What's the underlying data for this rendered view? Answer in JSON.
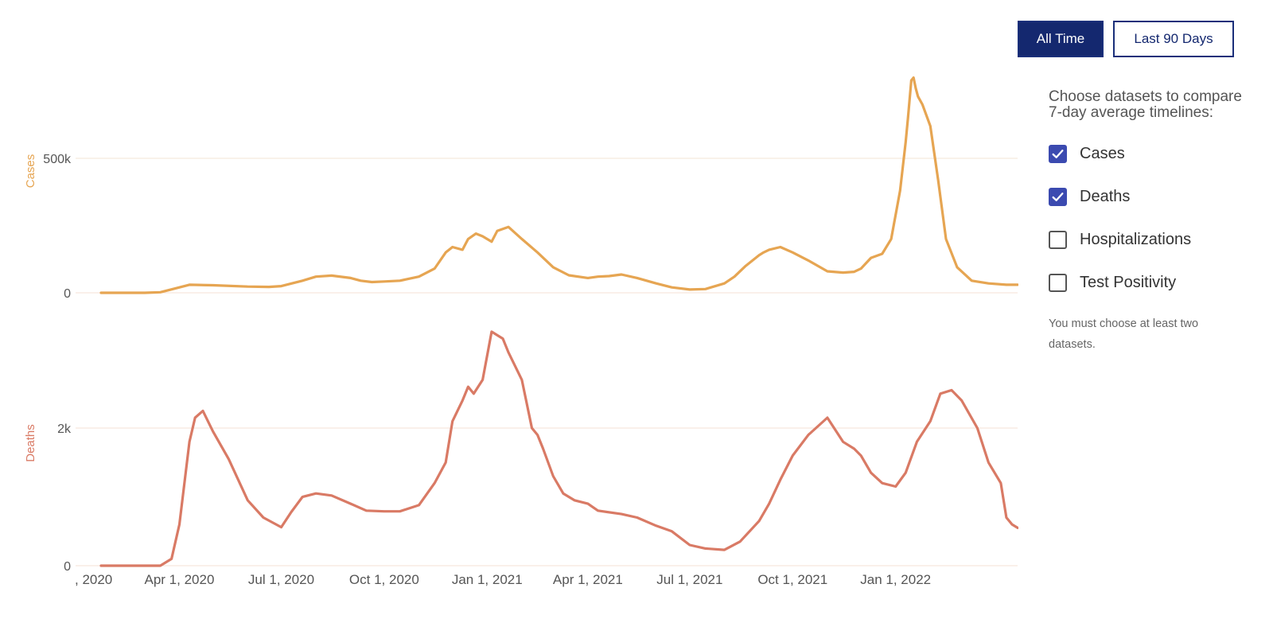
{
  "controls": {
    "all_time_label": "All Time",
    "last_90_label": "Last 90 Days",
    "selected": "all_time"
  },
  "panel": {
    "title": "Choose datasets to compare 7-day average timelines:",
    "options": [
      {
        "label": "Cases",
        "checked": true
      },
      {
        "label": "Deaths",
        "checked": true
      },
      {
        "label": "Hospitalizations",
        "checked": false
      },
      {
        "label": "Test Positivity",
        "checked": false
      }
    ],
    "note": "You must choose at least two datasets."
  },
  "colors": {
    "cases": "#e6a552",
    "deaths": "#d97a65",
    "accent": "#14286f",
    "checkbox": "#3b4ab0"
  },
  "chart_data": {
    "type": "line",
    "x_tick_labels": [
      ", 2020",
      "Apr 1, 2020",
      "Jul 1, 2020",
      "Oct 1, 2020",
      "Jan 1, 2021",
      "Apr 1, 2021",
      "Jul 1, 2021",
      "Oct 1, 2021",
      "Jan 1, 2022"
    ],
    "panels": [
      {
        "ylabel": "Cases",
        "ylim": [
          0,
          800000
        ],
        "y_ticks": [
          {
            "value": 0,
            "label": "0"
          },
          {
            "value": 500000,
            "label": "500k"
          }
        ],
        "series": [
          {
            "x": [
              "2020-01-22",
              "2020-03-01",
              "2020-03-15",
              "2020-04-01",
              "2020-04-10",
              "2020-05-01",
              "2020-06-01",
              "2020-06-20",
              "2020-07-01",
              "2020-07-20",
              "2020-08-01",
              "2020-08-15",
              "2020-09-01",
              "2020-09-10",
              "2020-09-20",
              "2020-10-01",
              "2020-10-15",
              "2020-11-01",
              "2020-11-15",
              "2020-11-25",
              "2020-12-01",
              "2020-12-10",
              "2020-12-15",
              "2020-12-22",
              "2020-12-28",
              "2021-01-05",
              "2021-01-10",
              "2021-01-20",
              "2021-02-01",
              "2021-02-15",
              "2021-03-01",
              "2021-03-15",
              "2021-04-01",
              "2021-04-10",
              "2021-04-20",
              "2021-05-01",
              "2021-05-15",
              "2021-06-01",
              "2021-06-15",
              "2021-07-01",
              "2021-07-15",
              "2021-08-01",
              "2021-08-10",
              "2021-08-20",
              "2021-09-01",
              "2021-09-05",
              "2021-09-10",
              "2021-09-20",
              "2021-10-01",
              "2021-10-15",
              "2021-11-01",
              "2021-11-15",
              "2021-11-25",
              "2021-12-01",
              "2021-12-10",
              "2021-12-20",
              "2021-12-28",
              "2022-01-05",
              "2022-01-10",
              "2022-01-12",
              "2022-01-15",
              "2022-01-17",
              "2022-01-19",
              "2022-01-21",
              "2022-01-25",
              "2022-02-01",
              "2022-02-08",
              "2022-02-15",
              "2022-02-25",
              "2022-03-10",
              "2022-03-25",
              "2022-04-10",
              "2022-04-20"
            ],
            "values": [
              0,
              0,
              2000,
              20000,
              30000,
              28000,
              23000,
              22000,
              25000,
              45000,
              60000,
              64000,
              55000,
              45000,
              40000,
              42000,
              45000,
              60000,
              90000,
              150000,
              170000,
              160000,
              200000,
              220000,
              210000,
              190000,
              230000,
              245000,
              200000,
              150000,
              95000,
              65000,
              55000,
              60000,
              62000,
              68000,
              55000,
              35000,
              20000,
              12000,
              14000,
              35000,
              60000,
              100000,
              140000,
              150000,
              160000,
              170000,
              150000,
              120000,
              80000,
              75000,
              78000,
              90000,
              130000,
              145000,
              200000,
              380000,
              560000,
              650000,
              790000,
              800000,
              760000,
              730000,
              700000,
              620000,
              420000,
              200000,
              95000,
              45000,
              35000,
              30000,
              30000
            ]
          }
        ]
      },
      {
        "ylabel": "Deaths",
        "ylim": [
          0,
          3500
        ],
        "y_ticks": [
          {
            "value": 0,
            "label": "0"
          },
          {
            "value": 2000,
            "label": "2k"
          }
        ],
        "series": [
          {
            "x": [
              "2020-01-22",
              "2020-03-15",
              "2020-03-25",
              "2020-04-01",
              "2020-04-10",
              "2020-04-15",
              "2020-04-22",
              "2020-05-01",
              "2020-05-15",
              "2020-06-01",
              "2020-06-15",
              "2020-07-01",
              "2020-07-10",
              "2020-07-20",
              "2020-08-01",
              "2020-08-15",
              "2020-09-01",
              "2020-09-15",
              "2020-10-01",
              "2020-10-15",
              "2020-11-01",
              "2020-11-15",
              "2020-11-25",
              "2020-12-01",
              "2020-12-10",
              "2020-12-15",
              "2020-12-20",
              "2020-12-28",
              "2021-01-05",
              "2021-01-10",
              "2021-01-15",
              "2021-01-20",
              "2021-02-01",
              "2021-02-10",
              "2021-02-15",
              "2021-02-20",
              "2021-03-01",
              "2021-03-10",
              "2021-03-20",
              "2021-04-01",
              "2021-04-10",
              "2021-05-01",
              "2021-05-15",
              "2021-06-01",
              "2021-06-15",
              "2021-07-01",
              "2021-07-15",
              "2021-08-01",
              "2021-08-15",
              "2021-09-01",
              "2021-09-10",
              "2021-09-20",
              "2021-10-01",
              "2021-10-15",
              "2021-11-01",
              "2021-11-15",
              "2021-11-25",
              "2021-12-01",
              "2021-12-10",
              "2021-12-20",
              "2022-01-01",
              "2022-01-10",
              "2022-01-20",
              "2022-02-01",
              "2022-02-10",
              "2022-02-20",
              "2022-03-01",
              "2022-03-15",
              "2022-03-25",
              "2022-04-05",
              "2022-04-10",
              "2022-04-15",
              "2022-04-20"
            ],
            "values": [
              0,
              0,
              100,
              600,
              1800,
              2150,
              2250,
              1950,
              1550,
              950,
              700,
              560,
              780,
              1000,
              1050,
              1020,
              900,
              800,
              790,
              790,
              880,
              1200,
              1500,
              2100,
              2400,
              2600,
              2500,
              2700,
              3400,
              3350,
              3300,
              3100,
              2700,
              2000,
              1900,
              1700,
              1300,
              1050,
              950,
              900,
              800,
              750,
              700,
              580,
              500,
              300,
              250,
              230,
              350,
              650,
              900,
              1250,
              1600,
              1900,
              2150,
              1800,
              1700,
              1600,
              1350,
              1200,
              1150,
              1350,
              1800,
              2100,
              2500,
              2550,
              2400,
              2000,
              1500,
              1200,
              700,
              600,
              550
            ]
          }
        ]
      }
    ]
  }
}
